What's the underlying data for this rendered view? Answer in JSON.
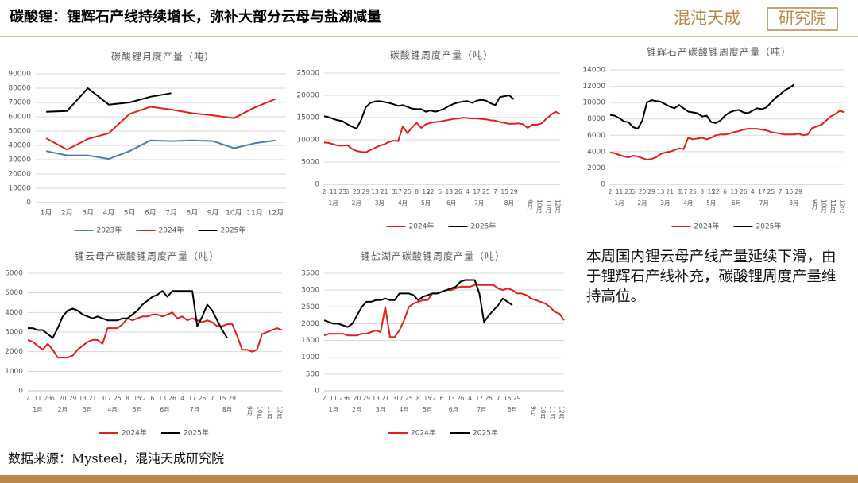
{
  "header": {
    "title": "碳酸锂：锂辉石产线持续增长，弥补大部分云母与盐湖减量",
    "logo": "混沌天成",
    "logo_box": "研究院"
  },
  "source": "数据来源：Mysteel，混沌天成研究院",
  "comment": "本周国内锂云母产线产量延续下滑，由于锂辉石产线补充，碳酸锂周度产量维持高位。",
  "chart_data": [
    {
      "type": "line",
      "title": "碳酸锂月度产量（吨）",
      "categories": [
        "1月",
        "2月",
        "3月",
        "4月",
        "5月",
        "6月",
        "7月",
        "8月",
        "9月",
        "10月",
        "11月",
        "12月"
      ],
      "ylim": [
        0,
        90000
      ],
      "yticks": [
        0,
        10000,
        20000,
        30000,
        40000,
        50000,
        60000,
        70000,
        80000,
        90000
      ],
      "grid": true,
      "series": [
        {
          "name": "2023年",
          "color": "#4a7ebb",
          "values": [
            36000,
            33000,
            33000,
            30500,
            36000,
            43500,
            43000,
            43500,
            43000,
            38000,
            41500,
            43500
          ]
        },
        {
          "name": "2024年",
          "color": "#e0201b",
          "values": [
            45000,
            37000,
            44500,
            48500,
            62000,
            67000,
            65000,
            62500,
            61000,
            59000,
            66500,
            72500
          ]
        },
        {
          "name": "2025年",
          "color": "#000000",
          "values": [
            63500,
            64000,
            80000,
            68500,
            70000,
            74000,
            76500,
            null,
            null,
            null,
            null,
            null
          ]
        }
      ]
    },
    {
      "type": "line",
      "title": "碳酸锂周度产量（吨）",
      "categories": [
        "2",
        null,
        "11",
        null,
        "23",
        "6",
        null,
        "20",
        null,
        "29",
        null,
        "13",
        null,
        "21",
        null,
        "3",
        "17",
        null,
        "25",
        null,
        "8",
        null,
        "15",
        "22",
        null,
        "6",
        null,
        "13",
        null,
        "26",
        null,
        "4",
        null,
        "17",
        null,
        "25",
        null,
        "7",
        null,
        "15",
        null,
        "29",
        null,
        null,
        null,
        null,
        null,
        null,
        null,
        null,
        null,
        null
      ],
      "months": [
        "1月",
        null,
        null,
        null,
        null,
        "2月",
        null,
        null,
        null,
        null,
        "3月",
        null,
        null,
        null,
        null,
        "4月",
        null,
        null,
        null,
        null,
        "5月",
        null,
        null,
        null,
        null,
        "6月",
        null,
        null,
        null,
        null,
        null,
        "7月",
        null,
        null,
        null,
        null,
        null,
        "8月",
        null,
        null,
        null,
        null,
        null,
        null,
        "9月",
        null,
        "10月",
        null,
        "11月",
        null,
        "12月",
        null
      ],
      "ylim": [
        0,
        25000
      ],
      "yticks": [
        0,
        5000,
        10000,
        15000,
        20000,
        25000
      ],
      "grid": true,
      "series": [
        {
          "name": "2024年",
          "color": "#e0201b",
          "values": [
            9400,
            9300,
            9000,
            8700,
            8700,
            8800,
            8000,
            7500,
            7300,
            7200,
            7700,
            8200,
            8700,
            9000,
            9500,
            9800,
            9700,
            13000,
            11500,
            12800,
            13800,
            12700,
            13500,
            13800,
            14000,
            14100,
            14300,
            14500,
            14700,
            14800,
            15000,
            14900,
            14800,
            14800,
            14700,
            14600,
            14400,
            14300,
            14000,
            13800,
            13600,
            13600,
            13700,
            13500,
            12700,
            13400,
            13400,
            13700,
            14700,
            15600,
            16300,
            15800
          ]
        },
        {
          "name": "2025年",
          "color": "#000000",
          "values": [
            15300,
            15100,
            14700,
            14400,
            14200,
            13500,
            13000,
            12500,
            14500,
            17300,
            18300,
            18600,
            18700,
            18500,
            18300,
            18000,
            17600,
            17800,
            17400,
            17000,
            16900,
            16900,
            16300,
            16600,
            16300,
            16600,
            17000,
            17600,
            18100,
            18400,
            18600,
            18700,
            18300,
            18800,
            19000,
            18800,
            18200,
            17800,
            19600,
            19800,
            20000,
            19100,
            null,
            null,
            null,
            null,
            null,
            null,
            null,
            null,
            null,
            null
          ]
        }
      ]
    },
    {
      "type": "line",
      "title": "锂辉石产碳酸锂周度产量（吨）",
      "categories": [
        "2",
        null,
        "11",
        null,
        "23",
        "6",
        null,
        "20",
        null,
        "29",
        null,
        "13",
        null,
        "21",
        null,
        "3",
        "17",
        null,
        "25",
        null,
        "8",
        null,
        "15",
        "22",
        null,
        "6",
        null,
        "13",
        null,
        "26",
        null,
        "4",
        null,
        "17",
        null,
        "25",
        null,
        "7",
        null,
        "15",
        null,
        "29",
        null,
        null,
        null,
        null,
        null,
        null,
        null,
        null,
        null,
        null
      ],
      "months": [
        "1月",
        null,
        null,
        null,
        null,
        "2月",
        null,
        null,
        null,
        null,
        "3月",
        null,
        null,
        null,
        null,
        "4月",
        null,
        null,
        null,
        null,
        "5月",
        null,
        null,
        null,
        null,
        "6月",
        null,
        null,
        null,
        null,
        null,
        "7月",
        null,
        null,
        null,
        null,
        null,
        "8月",
        null,
        null,
        null,
        null,
        null,
        null,
        "9月",
        null,
        "10月",
        null,
        "11月",
        null,
        "12月",
        null
      ],
      "ylim": [
        0,
        14000
      ],
      "yticks": [
        0,
        2000,
        4000,
        6000,
        8000,
        10000,
        12000,
        14000
      ],
      "grid": true,
      "series": [
        {
          "name": "2024年",
          "color": "#e0201b",
          "values": [
            3900,
            3800,
            3600,
            3400,
            3300,
            3500,
            3400,
            3200,
            3000,
            3100,
            3300,
            3700,
            3900,
            4000,
            4200,
            4400,
            4300,
            5700,
            5500,
            5600,
            5700,
            5500,
            5700,
            6000,
            6100,
            6100,
            6200,
            6400,
            6500,
            6700,
            6800,
            6800,
            6800,
            6700,
            6600,
            6400,
            6300,
            6200,
            6100,
            6100,
            6100,
            6200,
            6000,
            6100,
            6900,
            7100,
            7300,
            7800,
            8300,
            8600,
            9000,
            8800
          ]
        },
        {
          "name": "2025年",
          "color": "#000000",
          "values": [
            8500,
            8400,
            8100,
            7700,
            7600,
            7000,
            6800,
            7800,
            10000,
            10300,
            10200,
            10100,
            9800,
            9500,
            9300,
            9700,
            9300,
            8900,
            8800,
            8700,
            8300,
            8400,
            7600,
            7500,
            7800,
            8400,
            8800,
            9000,
            9100,
            8800,
            8700,
            9000,
            9300,
            9200,
            9400,
            10000,
            10600,
            11000,
            11500,
            11800,
            12200,
            null,
            null,
            null,
            null,
            null,
            null,
            null,
            null,
            null,
            null,
            null
          ]
        }
      ]
    },
    {
      "type": "line",
      "title": "锂云母产碳酸锂周度产量（吨）",
      "categories": [
        "2",
        null,
        "11",
        null,
        "23",
        "6",
        null,
        "20",
        null,
        "29",
        null,
        "13",
        null,
        "21",
        null,
        "3",
        "17",
        null,
        "25",
        null,
        "8",
        null,
        "15",
        "22",
        null,
        "6",
        null,
        "13",
        null,
        "26",
        null,
        "4",
        null,
        "17",
        null,
        "25",
        null,
        "7",
        null,
        "15",
        null,
        "29",
        null,
        null,
        null,
        null,
        null,
        null,
        null,
        null,
        null,
        null
      ],
      "months": [
        "1月",
        null,
        null,
        null,
        null,
        "2月",
        null,
        null,
        null,
        null,
        "3月",
        null,
        null,
        null,
        null,
        "4月",
        null,
        null,
        null,
        null,
        "5月",
        null,
        null,
        null,
        null,
        "6月",
        null,
        null,
        null,
        null,
        null,
        "7月",
        null,
        null,
        null,
        null,
        null,
        "8月",
        null,
        null,
        null,
        null,
        null,
        null,
        "9月",
        null,
        "10月",
        null,
        "11月",
        null,
        "12月",
        null
      ],
      "ylim": [
        0,
        6000
      ],
      "yticks": [
        0,
        1000,
        2000,
        3000,
        4000,
        5000,
        6000
      ],
      "grid": true,
      "series": [
        {
          "name": "2024年",
          "color": "#e0201b",
          "values": [
            2600,
            2500,
            2300,
            2100,
            2400,
            2100,
            1700,
            1700,
            1700,
            1800,
            2100,
            2300,
            2500,
            2600,
            2600,
            2400,
            3200,
            3200,
            3200,
            3400,
            3700,
            3600,
            3700,
            3800,
            3800,
            3900,
            3900,
            3800,
            3900,
            4000,
            3700,
            3800,
            3600,
            3700,
            3600,
            3500,
            3600,
            3500,
            3300,
            3300,
            3400,
            3400,
            2800,
            2100,
            2100,
            2000,
            2100,
            2900,
            3000,
            3100,
            3200,
            3100
          ]
        },
        {
          "name": "2025年",
          "color": "#000000",
          "values": [
            3200,
            3200,
            3100,
            3100,
            2900,
            2700,
            3200,
            3800,
            4100,
            4200,
            4100,
            3900,
            3800,
            3700,
            3800,
            3700,
            3600,
            3600,
            3600,
            3700,
            3700,
            3900,
            4100,
            4400,
            4600,
            4800,
            4900,
            5100,
            4800,
            5100,
            5100,
            5100,
            5100,
            5100,
            3300,
            3800,
            4400,
            4100,
            3600,
            3100,
            2700,
            null,
            null,
            null,
            null,
            null,
            null,
            null,
            null,
            null,
            null,
            null
          ]
        }
      ]
    },
    {
      "type": "line",
      "title": "锂盐湖产碳酸锂周度产量（吨）",
      "categories": [
        "2",
        null,
        "11",
        null,
        "23",
        "6",
        null,
        "20",
        null,
        "29",
        null,
        "13",
        null,
        "21",
        null,
        "3",
        "17",
        null,
        "25",
        null,
        "8",
        null,
        "15",
        "22",
        null,
        "6",
        null,
        "13",
        null,
        "26",
        null,
        "4",
        null,
        "17",
        null,
        "25",
        null,
        "7",
        null,
        "15",
        null,
        "29",
        null,
        null,
        null,
        null,
        null,
        null,
        null,
        null,
        null,
        null
      ],
      "months": [
        "1月",
        null,
        null,
        null,
        null,
        "2月",
        null,
        null,
        null,
        null,
        "3月",
        null,
        null,
        null,
        null,
        "4月",
        null,
        null,
        null,
        null,
        "5月",
        null,
        null,
        null,
        null,
        "6月",
        null,
        null,
        null,
        null,
        null,
        "7月",
        null,
        null,
        null,
        null,
        null,
        "8月",
        null,
        null,
        null,
        null,
        null,
        null,
        "9月",
        null,
        "10月",
        null,
        "11月",
        null,
        "12月",
        null
      ],
      "ylim": [
        0,
        3500
      ],
      "yticks": [
        0,
        500,
        1000,
        1500,
        2000,
        2500,
        3000,
        3500
      ],
      "grid": true,
      "series": [
        {
          "name": "2024年",
          "color": "#e0201b",
          "values": [
            1650,
            1700,
            1700,
            1700,
            1700,
            1650,
            1650,
            1650,
            1700,
            1700,
            1750,
            1800,
            1750,
            2500,
            1600,
            1600,
            1800,
            2100,
            2500,
            2600,
            2650,
            2700,
            2700,
            2900,
            2900,
            2950,
            3000,
            3000,
            3050,
            3100,
            3100,
            3100,
            3150,
            3150,
            3150,
            3150,
            3150,
            3050,
            3000,
            3050,
            3000,
            2900,
            2900,
            2850,
            2750,
            2700,
            2650,
            2600,
            2500,
            2350,
            2300,
            2100
          ]
        },
        {
          "name": "2025年",
          "color": "#000000",
          "values": [
            2100,
            2050,
            2000,
            2000,
            1950,
            1900,
            2000,
            2250,
            2500,
            2650,
            2650,
            2700,
            2700,
            2750,
            2700,
            2700,
            2900,
            2900,
            2900,
            2850,
            2700,
            2800,
            2850,
            2900,
            2900,
            2950,
            3000,
            3050,
            3100,
            3250,
            3300,
            3300,
            3300,
            2900,
            2050,
            2250,
            2400,
            2550,
            2750,
            2650,
            2550,
            null,
            null,
            null,
            null,
            null,
            null,
            null,
            null,
            null,
            null,
            null
          ]
        }
      ]
    }
  ]
}
